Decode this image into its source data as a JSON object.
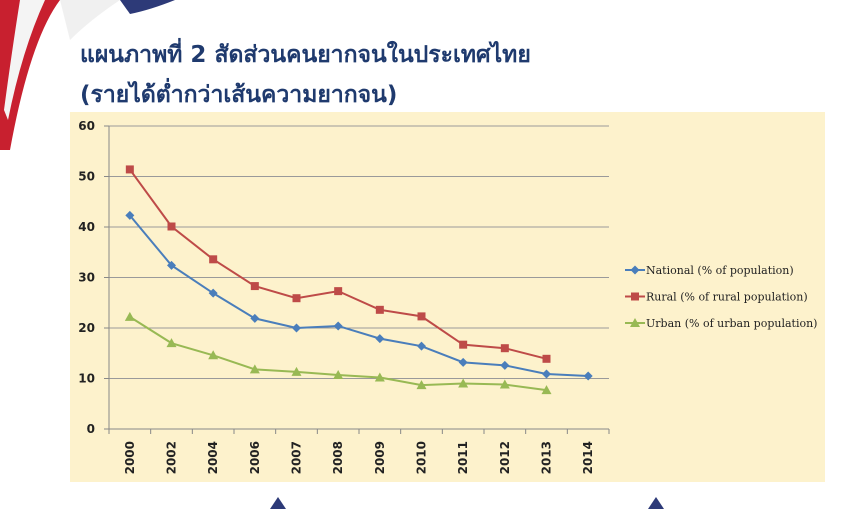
{
  "chart_data": {
    "type": "line",
    "title": "แผนภาพที่ 2 สัดส่วนคนยากจนในประเทศไทย",
    "subtitle": "(รายได้ต่ำกว่าเส้นความยากจน)",
    "categories": [
      "2000",
      "2002",
      "2004",
      "2006",
      "2007",
      "2008",
      "2009",
      "2010",
      "2011",
      "2012",
      "2013",
      "2014"
    ],
    "series": [
      {
        "name": "National (% of population)",
        "color": "#4a7ebb",
        "marker": "diamond",
        "values": [
          42.3,
          32.4,
          26.9,
          21.9,
          20.0,
          20.4,
          17.9,
          16.4,
          13.2,
          12.6,
          10.9,
          10.5
        ]
      },
      {
        "name": "Rural (% of rural population)",
        "color": "#be4b48",
        "marker": "square",
        "values": [
          51.4,
          40.1,
          33.6,
          28.3,
          25.9,
          27.3,
          23.6,
          22.3,
          16.7,
          16.0,
          13.9,
          null
        ]
      },
      {
        "name": "Urban (% of urban population)",
        "color": "#98b954",
        "marker": "triangle",
        "values": [
          22.2,
          17.0,
          14.6,
          11.8,
          11.3,
          10.7,
          10.2,
          8.7,
          9.0,
          8.8,
          7.7,
          null
        ]
      }
    ],
    "ylim": [
      0,
      60
    ],
    "yticks": [
      0,
      10,
      20,
      30,
      40,
      50,
      60
    ],
    "grid": true,
    "legend": "right"
  }
}
